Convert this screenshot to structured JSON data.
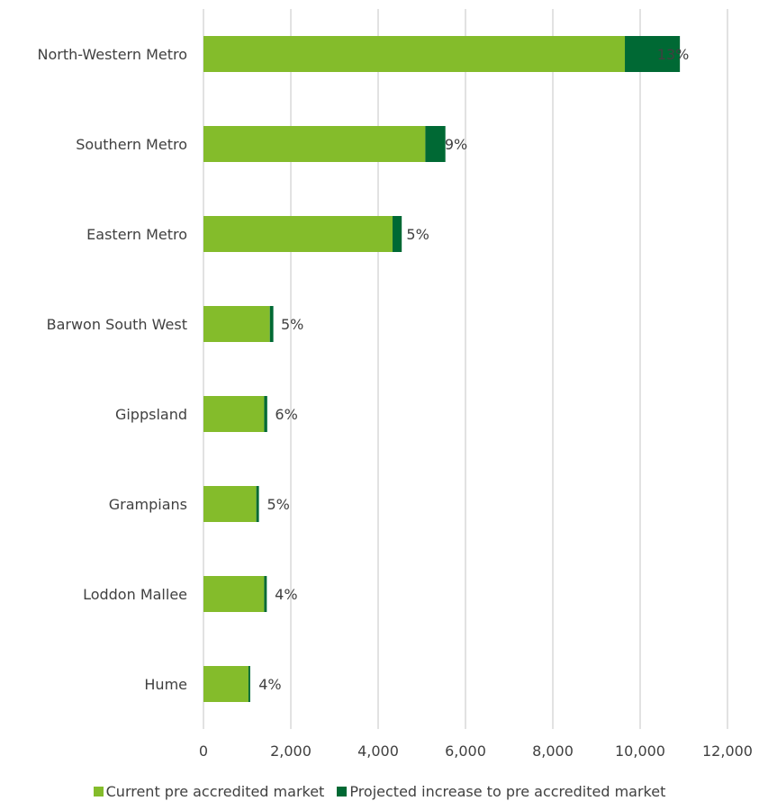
{
  "colors": {
    "current": "#84bc2b",
    "increase": "#006934",
    "grid": "#d9d9d9",
    "text": "#404040"
  },
  "chart_data": {
    "type": "bar",
    "orientation": "horizontal",
    "stacked": true,
    "title": "",
    "xlabel": "",
    "ylabel": "",
    "xlim": [
      0,
      12000
    ],
    "x_ticks": [
      0,
      2000,
      4000,
      6000,
      8000,
      10000,
      12000
    ],
    "x_tick_labels": [
      "0",
      "2,000",
      "4,000",
      "6,000",
      "8,000",
      "10,000",
      "12,000"
    ],
    "grid": "vertical",
    "legend_position": "bottom",
    "categories": [
      "North-Western Metro",
      "Southern Metro",
      "Eastern Metro",
      "Barwon South West",
      "Gippsland",
      "Grampians",
      "Loddon Mallee",
      "Hume"
    ],
    "series": [
      {
        "name": "Current pre accredited market",
        "values": [
          9650,
          5080,
          4330,
          1520,
          1390,
          1210,
          1390,
          1030
        ]
      },
      {
        "name": "Projected increase to pre accredited market",
        "values": [
          1260,
          460,
          210,
          80,
          70,
          60,
          60,
          40
        ]
      }
    ],
    "data_labels": [
      "13%",
      "9%",
      "5%",
      "5%",
      "6%",
      "5%",
      "4%",
      "4%"
    ]
  }
}
